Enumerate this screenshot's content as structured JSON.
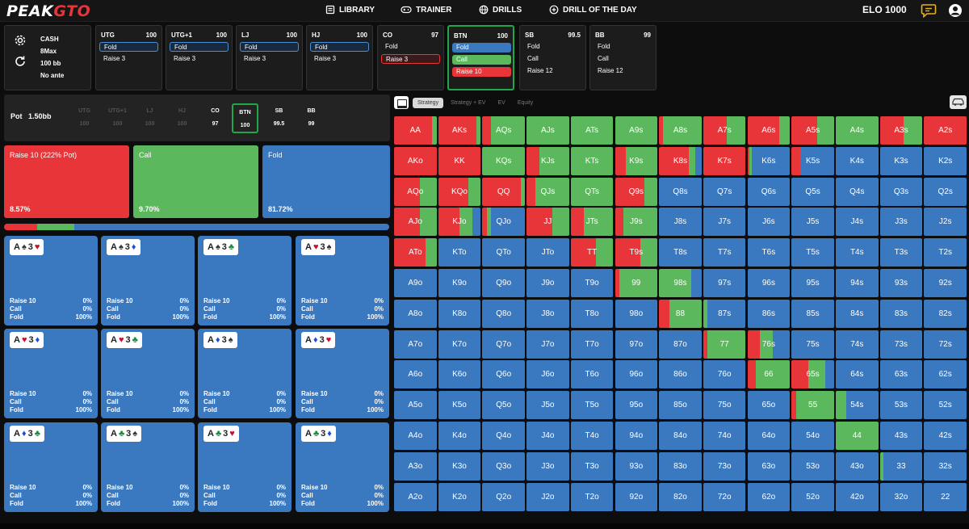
{
  "nav": {
    "logo_peak": "PEAK",
    "logo_gto": "GTO",
    "library": "LIBRARY",
    "trainer": "TRAINER",
    "drills": "DRILLS",
    "drill_of_day": "DRILL OF THE DAY",
    "elo": "ELO 1000"
  },
  "config": {
    "game": "CASH",
    "table": "8Max",
    "depth": "100 bb",
    "ante": "No ante"
  },
  "seats": [
    {
      "name": "UTG",
      "stack": "100",
      "actions": [
        {
          "label": "Fold",
          "style": "sel-blue"
        },
        {
          "label": "Raise 3",
          "style": "plain"
        }
      ]
    },
    {
      "name": "UTG+1",
      "stack": "100",
      "actions": [
        {
          "label": "Fold",
          "style": "sel-blue"
        },
        {
          "label": "Raise 3",
          "style": "plain"
        }
      ]
    },
    {
      "name": "LJ",
      "stack": "100",
      "actions": [
        {
          "label": "Fold",
          "style": "sel-blue"
        },
        {
          "label": "Raise 3",
          "style": "plain"
        }
      ]
    },
    {
      "name": "HJ",
      "stack": "100",
      "actions": [
        {
          "label": "Fold",
          "style": "sel-blue"
        },
        {
          "label": "Raise 3",
          "style": "plain"
        }
      ]
    },
    {
      "name": "CO",
      "stack": "97",
      "actions": [
        {
          "label": "Fold",
          "style": "plain"
        },
        {
          "label": "Raise 3",
          "style": "sel-red"
        }
      ]
    },
    {
      "name": "BTN",
      "stack": "100",
      "active": true,
      "actions": [
        {
          "label": "Fold",
          "style": "fill-blue"
        },
        {
          "label": "Call",
          "style": "fill-green"
        },
        {
          "label": "Raise 10",
          "style": "fill-red"
        }
      ]
    },
    {
      "name": "SB",
      "stack": "99.5",
      "actions": [
        {
          "label": "Fold",
          "style": "plain"
        },
        {
          "label": "Call",
          "style": "plain"
        },
        {
          "label": "Raise 12",
          "style": "plain"
        }
      ]
    },
    {
      "name": "BB",
      "stack": "99",
      "actions": [
        {
          "label": "Fold",
          "style": "plain"
        },
        {
          "label": "Call",
          "style": "plain"
        },
        {
          "label": "Raise 12",
          "style": "plain"
        }
      ]
    }
  ],
  "pot": {
    "label": "Pot",
    "value": "1.50bb",
    "positions": [
      {
        "name": "UTG",
        "stack": "100",
        "state": "dim"
      },
      {
        "name": "UTG+1",
        "stack": "100",
        "state": "dim"
      },
      {
        "name": "LJ",
        "stack": "100",
        "state": "dim"
      },
      {
        "name": "HJ",
        "stack": "100",
        "state": "dim"
      },
      {
        "name": "CO",
        "stack": "97",
        "state": "normal"
      },
      {
        "name": "BTN",
        "stack": "100",
        "state": "hero"
      },
      {
        "name": "SB",
        "stack": "99.5",
        "state": "normal"
      },
      {
        "name": "BB",
        "stack": "99",
        "state": "normal"
      }
    ]
  },
  "summary": [
    {
      "label": "Raise 10 (222% Pot)",
      "pct": "8.57%",
      "color": "#e8353a",
      "frac": 0.0857
    },
    {
      "label": "Call",
      "pct": "9.70%",
      "color": "#5cb85c",
      "frac": 0.097
    },
    {
      "label": "Fold",
      "pct": "81.72%",
      "color": "#3a78c0",
      "frac": 0.8172
    }
  ],
  "combos": [
    {
      "r1": "A",
      "s1": "♠",
      "c1": "suit-black",
      "r2": "3",
      "s2": "♥",
      "c2": "suit-red"
    },
    {
      "r1": "A",
      "s1": "♠",
      "c1": "suit-black",
      "r2": "3",
      "s2": "♦",
      "c2": "suit-blue"
    },
    {
      "r1": "A",
      "s1": "♠",
      "c1": "suit-black",
      "r2": "3",
      "s2": "♣",
      "c2": "suit-green"
    },
    {
      "r1": "A",
      "s1": "♥",
      "c1": "suit-red",
      "r2": "3",
      "s2": "♠",
      "c2": "suit-black"
    },
    {
      "r1": "A",
      "s1": "♥",
      "c1": "suit-red",
      "r2": "3",
      "s2": "♦",
      "c2": "suit-blue"
    },
    {
      "r1": "A",
      "s1": "♥",
      "c1": "suit-red",
      "r2": "3",
      "s2": "♣",
      "c2": "suit-green"
    },
    {
      "r1": "A",
      "s1": "♦",
      "c1": "suit-blue",
      "r2": "3",
      "s2": "♠",
      "c2": "suit-black"
    },
    {
      "r1": "A",
      "s1": "♦",
      "c1": "suit-blue",
      "r2": "3",
      "s2": "♥",
      "c2": "suit-red"
    },
    {
      "r1": "A",
      "s1": "♦",
      "c1": "suit-blue",
      "r2": "3",
      "s2": "♣",
      "c2": "suit-green"
    },
    {
      "r1": "A",
      "s1": "♣",
      "c1": "suit-green",
      "r2": "3",
      "s2": "♠",
      "c2": "suit-black"
    },
    {
      "r1": "A",
      "s1": "♣",
      "c1": "suit-green",
      "r2": "3",
      "s2": "♥",
      "c2": "suit-red"
    },
    {
      "r1": "A",
      "s1": "♣",
      "c1": "suit-green",
      "r2": "3",
      "s2": "♦",
      "c2": "suit-blue"
    }
  ],
  "combo_stats": [
    {
      "label": "Raise 10",
      "value": "0%"
    },
    {
      "label": "Call",
      "value": "0%"
    },
    {
      "label": "Fold",
      "value": "100%"
    }
  ],
  "tabs": [
    "Strategy",
    "Strategy + EV",
    "EV",
    "Equity"
  ],
  "colors": {
    "raise": "#e8353a",
    "call": "#5cb85c",
    "fold": "#3a78c0"
  },
  "grid": [
    [
      {
        "h": "AA",
        "r": 0.9,
        "c": 0.1
      },
      {
        "h": "AKs",
        "r": 0.9,
        "c": 0.1
      },
      {
        "h": "AQs",
        "r": 0.2,
        "c": 0.8
      },
      {
        "h": "AJs",
        "r": 0,
        "c": 1
      },
      {
        "h": "ATs",
        "r": 0,
        "c": 1
      },
      {
        "h": "A9s",
        "r": 0,
        "c": 1
      },
      {
        "h": "A8s",
        "r": 0.1,
        "c": 0.9
      },
      {
        "h": "A7s",
        "r": 0.55,
        "c": 0.45
      },
      {
        "h": "A6s",
        "r": 0.75,
        "c": 0.25
      },
      {
        "h": "A5s",
        "r": 0.6,
        "c": 0.4
      },
      {
        "h": "A4s",
        "r": 0,
        "c": 1
      },
      {
        "h": "A3s",
        "r": 0.55,
        "c": 0.45
      },
      {
        "h": "A2s",
        "r": 1,
        "c": 0
      }
    ],
    [
      {
        "h": "AKo",
        "r": 1,
        "c": 0
      },
      {
        "h": "KK",
        "r": 1,
        "c": 0
      },
      {
        "h": "KQs",
        "r": 0,
        "c": 1
      },
      {
        "h": "KJs",
        "r": 0.3,
        "c": 0.7
      },
      {
        "h": "KTs",
        "r": 0,
        "c": 1
      },
      {
        "h": "K9s",
        "r": 0.25,
        "c": 0.75
      },
      {
        "h": "K8s",
        "r": 0.7,
        "c": 0.15
      },
      {
        "h": "K7s",
        "r": 1,
        "c": 0
      },
      {
        "h": "K6s",
        "r": 0.05,
        "c": 0.05
      },
      {
        "h": "K5s",
        "r": 0.2,
        "c": 0
      },
      {
        "h": "K4s",
        "r": 0,
        "c": 0
      },
      {
        "h": "K3s",
        "r": 0,
        "c": 0
      },
      {
        "h": "K2s",
        "r": 0,
        "c": 0
      }
    ],
    [
      {
        "h": "AQo",
        "r": 0.6,
        "c": 0.4
      },
      {
        "h": "KQo",
        "r": 0.7,
        "c": 0.3
      },
      {
        "h": "QQ",
        "r": 0.9,
        "c": 0.1
      },
      {
        "h": "QJs",
        "r": 0.2,
        "c": 0.8
      },
      {
        "h": "QTs",
        "r": 0,
        "c": 1
      },
      {
        "h": "Q9s",
        "r": 0.7,
        "c": 0.3
      },
      {
        "h": "Q8s",
        "r": 0,
        "c": 0
      },
      {
        "h": "Q7s",
        "r": 0,
        "c": 0
      },
      {
        "h": "Q6s",
        "r": 0,
        "c": 0
      },
      {
        "h": "Q5s",
        "r": 0,
        "c": 0
      },
      {
        "h": "Q4s",
        "r": 0,
        "c": 0
      },
      {
        "h": "Q3s",
        "r": 0,
        "c": 0
      },
      {
        "h": "Q2s",
        "r": 0,
        "c": 0
      }
    ],
    [
      {
        "h": "AJo",
        "r": 0.6,
        "c": 0.4
      },
      {
        "h": "KJo",
        "r": 0.5,
        "c": 0.3
      },
      {
        "h": "QJo",
        "r": 0.1,
        "c": 0.1
      },
      {
        "h": "JJ",
        "r": 0.6,
        "c": 0.4
      },
      {
        "h": "JTs",
        "r": 0.3,
        "c": 0.7
      },
      {
        "h": "J9s",
        "r": 0.2,
        "c": 0.8
      },
      {
        "h": "J8s",
        "r": 0,
        "c": 0
      },
      {
        "h": "J7s",
        "r": 0,
        "c": 0
      },
      {
        "h": "J6s",
        "r": 0,
        "c": 0
      },
      {
        "h": "J5s",
        "r": 0,
        "c": 0
      },
      {
        "h": "J4s",
        "r": 0,
        "c": 0
      },
      {
        "h": "J3s",
        "r": 0,
        "c": 0
      },
      {
        "h": "J2s",
        "r": 0,
        "c": 0
      }
    ],
    [
      {
        "h": "ATo",
        "r": 0.75,
        "c": 0.25
      },
      {
        "h": "KTo",
        "r": 0,
        "c": 0
      },
      {
        "h": "QTo",
        "r": 0,
        "c": 0
      },
      {
        "h": "JTo",
        "r": 0,
        "c": 0
      },
      {
        "h": "TT",
        "r": 0.6,
        "c": 0.4
      },
      {
        "h": "T9s",
        "r": 0.6,
        "c": 0.4
      },
      {
        "h": "T8s",
        "r": 0,
        "c": 0
      },
      {
        "h": "T7s",
        "r": 0,
        "c": 0
      },
      {
        "h": "T6s",
        "r": 0,
        "c": 0
      },
      {
        "h": "T5s",
        "r": 0,
        "c": 0
      },
      {
        "h": "T4s",
        "r": 0,
        "c": 0
      },
      {
        "h": "T3s",
        "r": 0,
        "c": 0
      },
      {
        "h": "T2s",
        "r": 0,
        "c": 0
      }
    ],
    [
      {
        "h": "A9o",
        "r": 0,
        "c": 0
      },
      {
        "h": "K9o",
        "r": 0,
        "c": 0
      },
      {
        "h": "Q9o",
        "r": 0,
        "c": 0
      },
      {
        "h": "J9o",
        "r": 0,
        "c": 0
      },
      {
        "h": "T9o",
        "r": 0,
        "c": 0
      },
      {
        "h": "99",
        "r": 0.1,
        "c": 0.9
      },
      {
        "h": "98s",
        "r": 0,
        "c": 0.75
      },
      {
        "h": "97s",
        "r": 0,
        "c": 0
      },
      {
        "h": "96s",
        "r": 0,
        "c": 0
      },
      {
        "h": "95s",
        "r": 0,
        "c": 0
      },
      {
        "h": "94s",
        "r": 0,
        "c": 0
      },
      {
        "h": "93s",
        "r": 0,
        "c": 0
      },
      {
        "h": "92s",
        "r": 0,
        "c": 0
      }
    ],
    [
      {
        "h": "A8o",
        "r": 0,
        "c": 0
      },
      {
        "h": "K8o",
        "r": 0,
        "c": 0
      },
      {
        "h": "Q8o",
        "r": 0,
        "c": 0
      },
      {
        "h": "J8o",
        "r": 0,
        "c": 0
      },
      {
        "h": "T8o",
        "r": 0,
        "c": 0
      },
      {
        "h": "98o",
        "r": 0,
        "c": 0
      },
      {
        "h": "88",
        "r": 0.25,
        "c": 0.75
      },
      {
        "h": "87s",
        "r": 0,
        "c": 0.1
      },
      {
        "h": "86s",
        "r": 0,
        "c": 0
      },
      {
        "h": "85s",
        "r": 0,
        "c": 0
      },
      {
        "h": "84s",
        "r": 0,
        "c": 0
      },
      {
        "h": "83s",
        "r": 0,
        "c": 0
      },
      {
        "h": "82s",
        "r": 0,
        "c": 0
      }
    ],
    [
      {
        "h": "A7o",
        "r": 0,
        "c": 0
      },
      {
        "h": "K7o",
        "r": 0,
        "c": 0
      },
      {
        "h": "Q7o",
        "r": 0,
        "c": 0
      },
      {
        "h": "J7o",
        "r": 0,
        "c": 0
      },
      {
        "h": "T7o",
        "r": 0,
        "c": 0
      },
      {
        "h": "97o",
        "r": 0,
        "c": 0
      },
      {
        "h": "87o",
        "r": 0,
        "c": 0
      },
      {
        "h": "77",
        "r": 0.1,
        "c": 0.9
      },
      {
        "h": "76s",
        "r": 0.3,
        "c": 0.3
      },
      {
        "h": "75s",
        "r": 0,
        "c": 0
      },
      {
        "h": "74s",
        "r": 0,
        "c": 0
      },
      {
        "h": "73s",
        "r": 0,
        "c": 0
      },
      {
        "h": "72s",
        "r": 0,
        "c": 0
      }
    ],
    [
      {
        "h": "A6o",
        "r": 0,
        "c": 0
      },
      {
        "h": "K6o",
        "r": 0,
        "c": 0
      },
      {
        "h": "Q6o",
        "r": 0,
        "c": 0
      },
      {
        "h": "J6o",
        "r": 0,
        "c": 0
      },
      {
        "h": "T6o",
        "r": 0,
        "c": 0
      },
      {
        "h": "96o",
        "r": 0,
        "c": 0
      },
      {
        "h": "86o",
        "r": 0,
        "c": 0
      },
      {
        "h": "76o",
        "r": 0,
        "c": 0
      },
      {
        "h": "66",
        "r": 0.2,
        "c": 0.8
      },
      {
        "h": "65s",
        "r": 0.4,
        "c": 0.4
      },
      {
        "h": "64s",
        "r": 0,
        "c": 0
      },
      {
        "h": "63s",
        "r": 0,
        "c": 0
      },
      {
        "h": "62s",
        "r": 0,
        "c": 0
      }
    ],
    [
      {
        "h": "A5o",
        "r": 0,
        "c": 0
      },
      {
        "h": "K5o",
        "r": 0,
        "c": 0
      },
      {
        "h": "Q5o",
        "r": 0,
        "c": 0
      },
      {
        "h": "J5o",
        "r": 0,
        "c": 0
      },
      {
        "h": "T5o",
        "r": 0,
        "c": 0
      },
      {
        "h": "95o",
        "r": 0,
        "c": 0
      },
      {
        "h": "85o",
        "r": 0,
        "c": 0
      },
      {
        "h": "75o",
        "r": 0,
        "c": 0
      },
      {
        "h": "65o",
        "r": 0,
        "c": 0
      },
      {
        "h": "55",
        "r": 0.1,
        "c": 0.9
      },
      {
        "h": "54s",
        "r": 0,
        "c": 0.25
      },
      {
        "h": "53s",
        "r": 0,
        "c": 0
      },
      {
        "h": "52s",
        "r": 0,
        "c": 0
      }
    ],
    [
      {
        "h": "A4o",
        "r": 0,
        "c": 0
      },
      {
        "h": "K4o",
        "r": 0,
        "c": 0
      },
      {
        "h": "Q4o",
        "r": 0,
        "c": 0
      },
      {
        "h": "J4o",
        "r": 0,
        "c": 0
      },
      {
        "h": "T4o",
        "r": 0,
        "c": 0
      },
      {
        "h": "94o",
        "r": 0,
        "c": 0
      },
      {
        "h": "84o",
        "r": 0,
        "c": 0
      },
      {
        "h": "74o",
        "r": 0,
        "c": 0
      },
      {
        "h": "64o",
        "r": 0,
        "c": 0
      },
      {
        "h": "54o",
        "r": 0,
        "c": 0
      },
      {
        "h": "44",
        "r": 0,
        "c": 1
      },
      {
        "h": "43s",
        "r": 0,
        "c": 0
      },
      {
        "h": "42s",
        "r": 0,
        "c": 0
      }
    ],
    [
      {
        "h": "A3o",
        "r": 0,
        "c": 0
      },
      {
        "h": "K3o",
        "r": 0,
        "c": 0
      },
      {
        "h": "Q3o",
        "r": 0,
        "c": 0
      },
      {
        "h": "J3o",
        "r": 0,
        "c": 0
      },
      {
        "h": "T3o",
        "r": 0,
        "c": 0
      },
      {
        "h": "93o",
        "r": 0,
        "c": 0
      },
      {
        "h": "83o",
        "r": 0,
        "c": 0
      },
      {
        "h": "73o",
        "r": 0,
        "c": 0
      },
      {
        "h": "63o",
        "r": 0,
        "c": 0
      },
      {
        "h": "53o",
        "r": 0,
        "c": 0
      },
      {
        "h": "43o",
        "r": 0,
        "c": 0
      },
      {
        "h": "33",
        "r": 0,
        "c": 0.08
      },
      {
        "h": "32s",
        "r": 0,
        "c": 0
      }
    ],
    [
      {
        "h": "A2o",
        "r": 0,
        "c": 0
      },
      {
        "h": "K2o",
        "r": 0,
        "c": 0
      },
      {
        "h": "Q2o",
        "r": 0,
        "c": 0
      },
      {
        "h": "J2o",
        "r": 0,
        "c": 0
      },
      {
        "h": "T2o",
        "r": 0,
        "c": 0
      },
      {
        "h": "92o",
        "r": 0,
        "c": 0
      },
      {
        "h": "82o",
        "r": 0,
        "c": 0
      },
      {
        "h": "72o",
        "r": 0,
        "c": 0
      },
      {
        "h": "62o",
        "r": 0,
        "c": 0
      },
      {
        "h": "52o",
        "r": 0,
        "c": 0
      },
      {
        "h": "42o",
        "r": 0,
        "c": 0
      },
      {
        "h": "32o",
        "r": 0,
        "c": 0
      },
      {
        "h": "22",
        "r": 0,
        "c": 0
      }
    ]
  ]
}
